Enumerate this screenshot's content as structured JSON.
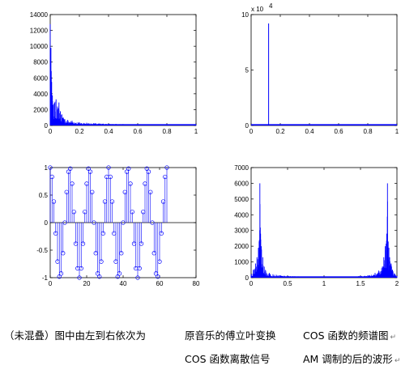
{
  "figure": {
    "background": "#ffffff",
    "line_color": "#0000ff"
  },
  "chart_data": [
    {
      "type": "area",
      "panel": "top-left",
      "description_source": "original music Fourier transform",
      "xlim": [
        0,
        1
      ],
      "ylim": [
        0,
        14000
      ],
      "xticks": [
        0,
        0.2,
        0.4,
        0.6,
        0.8,
        1
      ],
      "yticks": [
        0,
        2000,
        4000,
        6000,
        8000,
        10000,
        12000,
        14000
      ],
      "xtick_labels": [
        "0",
        "0.2",
        "0.4",
        "0.6",
        "0.8",
        "1"
      ],
      "ytick_labels": [
        "0",
        "2000",
        "4000",
        "6000",
        "8000",
        "10000",
        "12000",
        "14000"
      ],
      "x": [
        0,
        0.005,
        0.01,
        0.015,
        0.02,
        0.03,
        0.04,
        0.05,
        0.06,
        0.07,
        0.08,
        0.09,
        0.1,
        0.12,
        0.15,
        0.2,
        0.25,
        0.3,
        0.4,
        0.5,
        0.6,
        0.7,
        0.8,
        0.9,
        1.0
      ],
      "values": [
        12800,
        9800,
        5500,
        3800,
        2600,
        2900,
        3300,
        2400,
        2900,
        1800,
        1400,
        1000,
        800,
        700,
        600,
        420,
        350,
        300,
        220,
        170,
        140,
        120,
        110,
        100,
        90
      ]
    },
    {
      "type": "bar",
      "panel": "top-right",
      "yscale_label": "x 10",
      "yscale_exp": "4",
      "xlim": [
        0,
        1
      ],
      "ylim": [
        0,
        10
      ],
      "xticks": [
        0,
        0.2,
        0.4,
        0.6,
        0.8,
        1
      ],
      "yticks": [
        0,
        5,
        10
      ],
      "xtick_labels": [
        "0",
        "0.2",
        "0.4",
        "0.6",
        "0.8",
        "1"
      ],
      "ytick_labels": [
        "0",
        "5",
        "10"
      ],
      "x": [
        0.12
      ],
      "values": [
        9.2
      ]
    },
    {
      "type": "scatter",
      "panel": "bottom-left",
      "marker": "stem-circle",
      "xlim": [
        0,
        80
      ],
      "ylim": [
        -1,
        1
      ],
      "xticks": [
        0,
        20,
        40,
        60,
        80
      ],
      "yticks": [
        -1,
        -0.5,
        0,
        0.5,
        1
      ],
      "xtick_labels": [
        "0",
        "20",
        "40",
        "60",
        "80"
      ],
      "ytick_labels": [
        "-1",
        "-0.5",
        "0",
        "0.5",
        "1"
      ],
      "n_samples": 65,
      "samples_per_period": 10.6667
    },
    {
      "type": "area",
      "panel": "bottom-right",
      "xlim": [
        0,
        2
      ],
      "ylim": [
        0,
        7000
      ],
      "xticks": [
        0,
        0.5,
        1,
        1.5,
        2
      ],
      "yticks": [
        0,
        1000,
        2000,
        3000,
        4000,
        5000,
        6000,
        7000
      ],
      "xtick_labels": [
        "0",
        "0.5",
        "1",
        "1.5",
        "2"
      ],
      "ytick_labels": [
        "0",
        "1000",
        "2000",
        "3000",
        "4000",
        "5000",
        "6000",
        "7000"
      ],
      "x": [
        0,
        0.03,
        0.06,
        0.08,
        0.1,
        0.11,
        0.12,
        0.13,
        0.14,
        0.16,
        0.18,
        0.2,
        0.25,
        0.3,
        0.4,
        0.5,
        0.7,
        1.0,
        1.3,
        1.5,
        1.6,
        1.7,
        1.75,
        1.8,
        1.82,
        1.84,
        1.86,
        1.87,
        1.88,
        1.89,
        1.9,
        1.92,
        1.94,
        1.97,
        2.0
      ],
      "values": [
        200,
        500,
        900,
        1300,
        1900,
        2300,
        6000,
        2800,
        2000,
        1300,
        700,
        450,
        300,
        220,
        150,
        110,
        80,
        60,
        80,
        110,
        150,
        300,
        450,
        700,
        1300,
        2000,
        2800,
        6000,
        2300,
        1900,
        1300,
        900,
        500,
        250,
        100
      ]
    }
  ],
  "caption": {
    "intro": "（未混叠）图中由左到右依次为",
    "items": [
      "原音乐的傅立叶变换",
      "COS 函数的频谱图",
      "COS 函数离散信号",
      "AM 调制的后的波形"
    ],
    "return_mark": "↵"
  }
}
